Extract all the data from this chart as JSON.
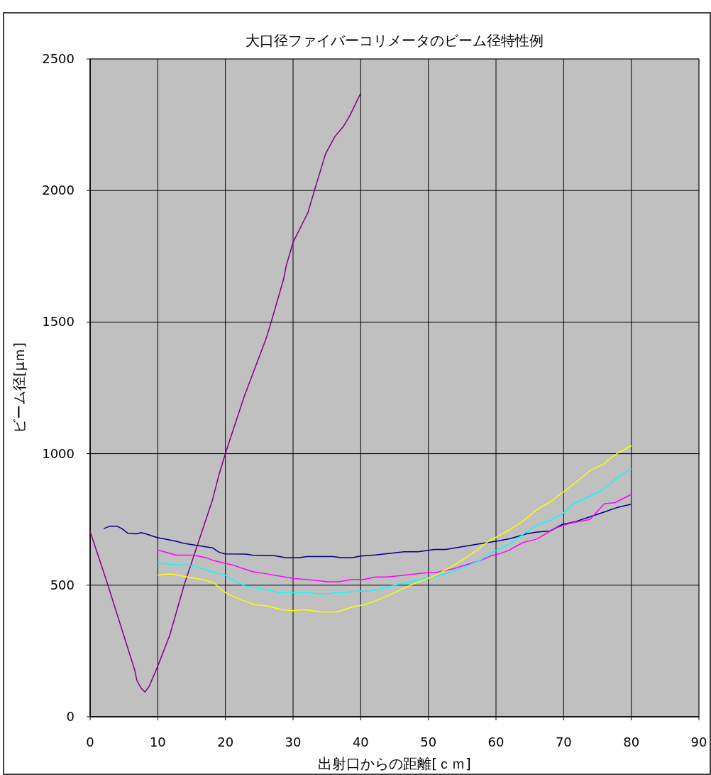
{
  "chart_data": {
    "type": "line",
    "title": "大口径ファイバーコリメータのビーム径特性例",
    "xlabel": "出射口からの距離[ｃｍ]",
    "ylabel": "ビーム径[μｍ]",
    "xlim": [
      0,
      90
    ],
    "xticks": [
      0,
      10,
      20,
      30,
      40,
      50,
      60,
      70,
      80,
      90
    ],
    "ylim": [
      0,
      2500
    ],
    "yticks": [
      0,
      500,
      1000,
      1500,
      2000,
      2500
    ],
    "grid": true,
    "marker": "none",
    "line_style": "solid",
    "series": [
      {
        "color": "#800080",
        "x": [
          0,
          2.4,
          6.6,
          6.9,
          7.5,
          8.1,
          8.7,
          9.9,
          11.8,
          13.9,
          16,
          18.1,
          19,
          20,
          22.8,
          26,
          26.8,
          28.6,
          29,
          30,
          31.4,
          32.2,
          33.2,
          34,
          34.8,
          36.2,
          37.4,
          38.4,
          40
        ],
        "values": [
          704,
          519,
          177,
          139,
          110,
          94,
          114,
          186,
          312,
          501,
          663,
          825,
          915,
          1001,
          1219,
          1436,
          1503,
          1663,
          1715,
          1803,
          1875,
          1916,
          2004,
          2071,
          2139,
          2206,
          2242,
          2285,
          2370
        ]
      },
      {
        "color": "#000080",
        "x": [
          2,
          2.9,
          4,
          4.7,
          5.6,
          6.8,
          7.5,
          8,
          9.9,
          12.5,
          13.9,
          18.1,
          19,
          19.9,
          23,
          24,
          27.2,
          28.9,
          31,
          32,
          35.9,
          37.1,
          38.8,
          40,
          42.2,
          46.4,
          48.5,
          50.9,
          52.6,
          54,
          57.9,
          60,
          62.1,
          64.5,
          66.1,
          68,
          69.8,
          71.8,
          73.9,
          76,
          78,
          80
        ],
        "values": [
          715,
          724,
          724,
          715,
          697,
          695,
          699,
          697,
          681,
          668,
          659,
          642,
          626,
          619,
          618,
          614,
          612,
          605,
          605,
          609,
          609,
          605,
          605,
          611,
          615,
          627,
          627,
          636,
          636,
          642,
          659,
          667,
          677,
          695,
          702,
          706,
          731,
          742,
          760,
          778,
          796,
          808
        ]
      },
      {
        "color": "#ff00ff",
        "x": [
          10,
          12.7,
          15.3,
          17.1,
          18.3,
          20.9,
          23.9,
          26.1,
          30,
          33.8,
          35,
          36.7,
          38.8,
          40.4,
          42.2,
          44,
          49.5,
          51.2,
          53.7,
          57.9,
          59.3,
          60.3,
          61.9,
          63.1,
          64.1,
          66.1,
          67.3,
          69,
          70.9,
          73.9,
          76,
          77.6,
          80
        ],
        "values": [
          634,
          614,
          614,
          605,
          593,
          578,
          552,
          543,
          526,
          517,
          513,
          513,
          522,
          522,
          531,
          531,
          547,
          549,
          562,
          596,
          612,
          618,
          632,
          650,
          663,
          676,
          695,
          719,
          735,
          750,
          809,
          814,
          845
        ]
      },
      {
        "color": "#00ffff",
        "x": [
          10,
          12.2,
          14.3,
          16,
          17.8,
          19.9,
          21.9,
          23,
          25.8,
          27.9,
          32.1,
          33.8,
          35.6,
          36.3,
          38,
          39.1,
          41.5,
          45,
          48.5,
          50.9,
          53.4,
          56.2,
          57.9,
          58.9,
          62.1,
          64.1,
          66.1,
          68,
          69.9,
          71.6,
          73.9,
          76,
          78,
          80
        ],
        "values": [
          586,
          577,
          577,
          568,
          553,
          539,
          508,
          497,
          484,
          473,
          473,
          468,
          468,
          473,
          473,
          477,
          477,
          500,
          519,
          533,
          549,
          578,
          598,
          618,
          659,
          695,
          729,
          746,
          773,
          812,
          839,
          866,
          911,
          942
        ]
      },
      {
        "color": "#ffff00",
        "x": [
          10,
          11.3,
          12.2,
          14.6,
          16.7,
          18.3,
          19.2,
          20.1,
          22.4,
          24.5,
          26.2,
          28.3,
          30,
          31.7,
          34.2,
          36.3,
          37.1,
          39.1,
          40.5,
          43.7,
          47.1,
          51,
          53.4,
          55.9,
          58.8,
          62.1,
          64,
          66.3,
          68,
          70.2,
          71.9,
          73.9,
          76,
          77.1,
          78,
          80
        ],
        "values": [
          538,
          542,
          542,
          530,
          521,
          509,
          488,
          470,
          443,
          425,
          421,
          407,
          403,
          407,
          398,
          398,
          403,
          420,
          425,
          456,
          497,
          537,
          570,
          610,
          665,
          712,
          744,
          792,
          816,
          859,
          893,
          935,
          962,
          986,
          1002,
          1030
        ]
      }
    ]
  }
}
